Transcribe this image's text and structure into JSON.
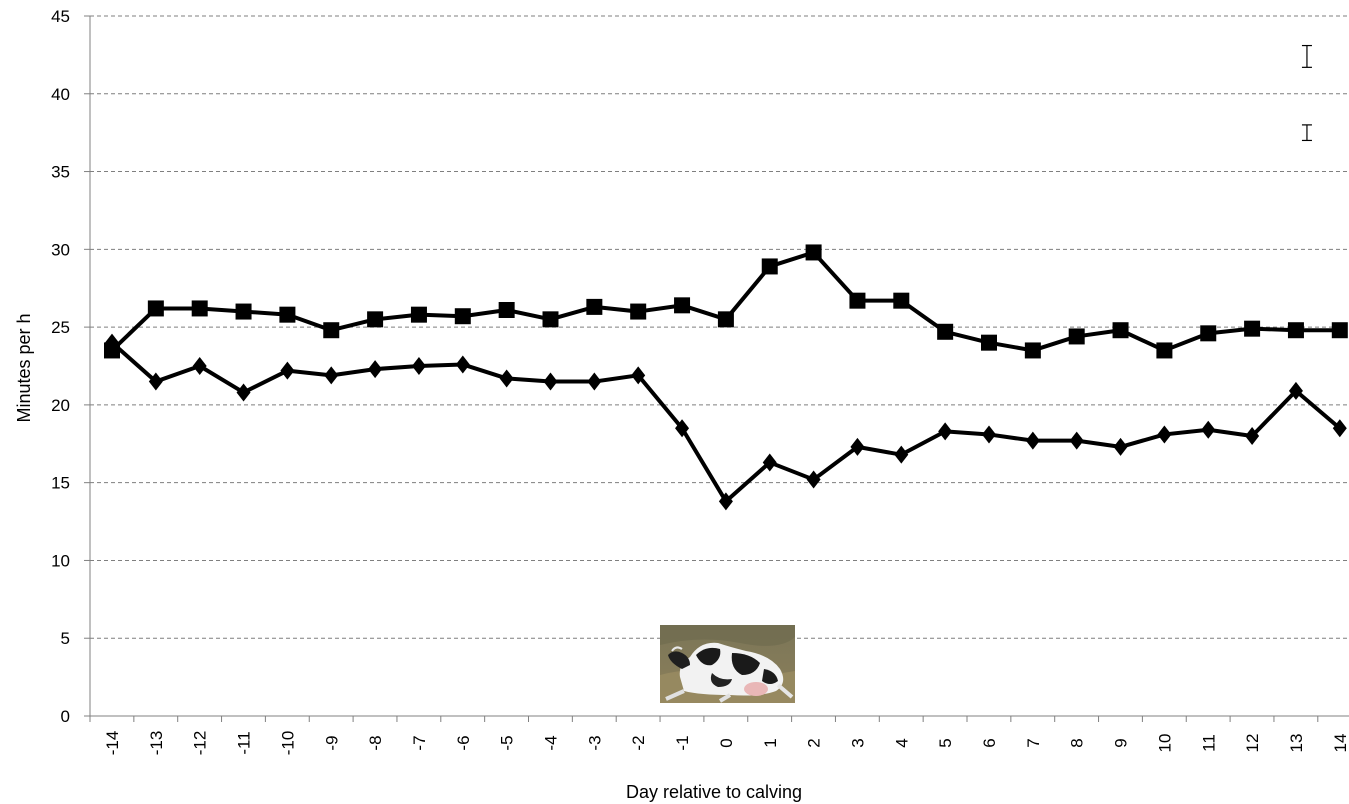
{
  "chart_data": {
    "type": "line",
    "xlabel": "Day relative to calving",
    "ylabel": "Minutes per h",
    "ylim": [
      0,
      45
    ],
    "yticks": [
      0,
      5,
      10,
      15,
      20,
      25,
      30,
      35,
      40,
      45
    ],
    "categories": [
      "-14",
      "-13",
      "-12",
      "-11",
      "-10",
      "-9",
      "-8",
      "-7",
      "-6",
      "-5",
      "-4",
      "-3",
      "-2",
      "-1",
      "0",
      "1",
      "2",
      "3",
      "4",
      "5",
      "6",
      "7",
      "8",
      "9",
      "10",
      "11",
      "12",
      "13",
      "14"
    ],
    "grid": true,
    "legend": "none",
    "series": [
      {
        "marker": "square",
        "color": "#000000",
        "values": [
          23.5,
          26.2,
          26.2,
          26.0,
          25.8,
          24.8,
          25.5,
          25.8,
          25.7,
          26.1,
          25.5,
          26.3,
          26.0,
          26.4,
          25.5,
          28.9,
          29.8,
          26.7,
          26.7,
          24.7,
          24.0,
          23.5,
          24.4,
          24.8,
          23.5,
          24.6,
          24.9,
          24.8,
          24.8
        ]
      },
      {
        "marker": "diamond",
        "color": "#000000",
        "values": [
          24.0,
          21.5,
          22.5,
          20.8,
          22.2,
          21.9,
          22.3,
          22.5,
          22.6,
          21.7,
          21.5,
          21.5,
          21.9,
          18.5,
          13.8,
          16.3,
          15.2,
          17.3,
          16.8,
          18.3,
          18.1,
          17.7,
          17.7,
          17.3,
          18.1,
          18.4,
          18.0,
          20.9,
          18.5
        ]
      }
    ],
    "error_bars": [
      {
        "x": "13",
        "center": 42.4,
        "low": 41.7,
        "high": 43.1
      },
      {
        "x": "13",
        "center": 37.5,
        "low": 37.0,
        "high": 38.0
      }
    ],
    "inset_image": "cow-lying-photo"
  }
}
